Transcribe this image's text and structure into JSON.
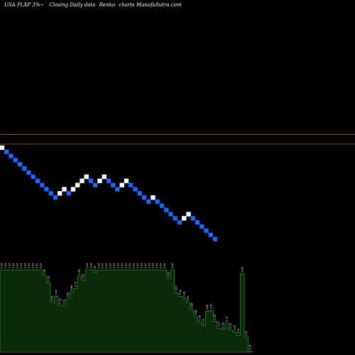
{
  "header": {
    "symbol": "USA PLXP 3%~",
    "description": "Closing Daily data",
    "chart_kind": "Renko",
    "suffix": "charts MunafaSutra.com"
  },
  "colors": {
    "background": "#000000",
    "brick_up": "#ffffff",
    "brick_down": "#1e6bff",
    "brick_down_border": "#0b3fbf",
    "ref_line": "#c0651d",
    "volume_fill": "#0a2a0a",
    "volume_stroke": "#1f8a1f",
    "volume_label": "#ffffff"
  },
  "chart_data": {
    "type": "renko",
    "title": "",
    "bricks": {
      "step_percent": 3,
      "directions": [
        "up",
        "down",
        "down",
        "down",
        "down",
        "down",
        "down",
        "down",
        "down",
        "down",
        "down",
        "down",
        "down",
        "up",
        "up",
        "down",
        "up",
        "up",
        "up",
        "up",
        "down",
        "down",
        "up",
        "up",
        "down",
        "down",
        "down",
        "up",
        "up",
        "down",
        "down",
        "down",
        "down",
        "down",
        "up",
        "down",
        "down",
        "down",
        "down",
        "down",
        "down",
        "up",
        "up",
        "down",
        "down",
        "down",
        "down",
        "down",
        "down"
      ]
    },
    "reference_lines": [
      {
        "level_index": 2.65
      },
      {
        "level_index": 0.35
      }
    ],
    "volume": {
      "values": [
        0.93,
        0.93,
        0.93,
        0.93,
        0.93,
        0.93,
        0.93,
        0.93,
        0.93,
        0.93,
        0.93,
        0.86,
        0.78,
        0.56,
        0.63,
        0.53,
        0.52,
        0.6,
        0.68,
        0.72,
        0.86,
        0.81,
        0.93,
        0.93,
        0.9,
        0.93,
        0.93,
        0.93,
        0.93,
        0.93,
        0.93,
        0.93,
        0.93,
        0.93,
        0.93,
        0.93,
        0.93,
        0.93,
        0.93,
        0.93,
        0.93,
        0.93,
        0.93,
        0.83,
        0.93,
        0.67,
        0.63,
        0.61,
        0.56,
        0.48,
        0.4,
        0.34,
        0.3,
        0.46,
        0.47,
        0.35,
        0.27,
        0.26,
        0.33,
        0.25,
        0.23,
        0.19,
        0.89,
        0.17,
        0.01
      ]
    }
  }
}
